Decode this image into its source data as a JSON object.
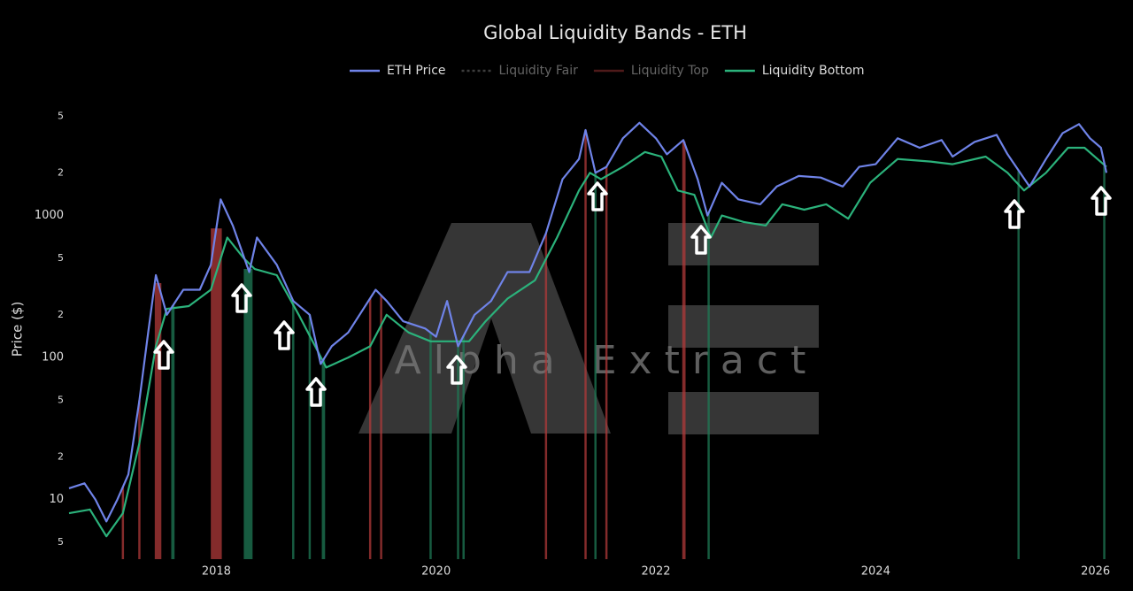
{
  "chart_data": {
    "type": "line",
    "title": "Global Liquidity Bands - ETH",
    "y_label": "Price ($)",
    "watermark": "Alpha Extract",
    "log_y": true,
    "grid": false,
    "legend": "top",
    "xlim": [
      2016.66,
      2026.14
    ],
    "xticks": [
      2018,
      2020,
      2022,
      2024,
      2026
    ],
    "ylim": [
      3.8,
      6800
    ],
    "yticks": [
      {
        "value": 5000,
        "label": "5"
      },
      {
        "value": 2000,
        "label": "2"
      },
      1000,
      {
        "value": 500,
        "label": "5"
      },
      {
        "value": 200,
        "label": "2"
      },
      100,
      {
        "value": 50,
        "label": "5"
      },
      {
        "value": 20,
        "label": "2"
      },
      10,
      {
        "value": 5,
        "label": "5"
      }
    ],
    "series": [
      {
        "name": "ETH Price",
        "color": "#6f83e8",
        "visible": true,
        "x": [
          2016.66,
          2016.8,
          2016.9,
          2017.0,
          2017.1,
          2017.2,
          2017.3,
          2017.38,
          2017.45,
          2017.55,
          2017.7,
          2017.85,
          2017.95,
          2018.04,
          2018.15,
          2018.3,
          2018.37,
          2018.55,
          2018.7,
          2018.85,
          2018.95,
          2019.05,
          2019.2,
          2019.45,
          2019.55,
          2019.7,
          2019.9,
          2020.0,
          2020.1,
          2020.2,
          2020.35,
          2020.5,
          2020.65,
          2020.85,
          2021.0,
          2021.15,
          2021.3,
          2021.36,
          2021.45,
          2021.55,
          2021.7,
          2021.85,
          2022.0,
          2022.1,
          2022.25,
          2022.38,
          2022.47,
          2022.6,
          2022.75,
          2022.95,
          2023.1,
          2023.3,
          2023.5,
          2023.7,
          2023.85,
          2024.0,
          2024.2,
          2024.4,
          2024.6,
          2024.7,
          2024.9,
          2025.1,
          2025.2,
          2025.4,
          2025.55,
          2025.7,
          2025.85,
          2025.95,
          2026.05,
          2026.1
        ],
        "values": [
          12,
          13,
          10,
          7,
          10,
          15,
          50,
          150,
          380,
          200,
          300,
          300,
          450,
          1300,
          850,
          400,
          700,
          450,
          250,
          200,
          90,
          120,
          150,
          300,
          250,
          180,
          160,
          140,
          250,
          120,
          200,
          250,
          400,
          400,
          750,
          1800,
          2500,
          4000,
          2000,
          2200,
          3500,
          4500,
          3500,
          2700,
          3400,
          1800,
          1000,
          1700,
          1300,
          1200,
          1600,
          1900,
          1850,
          1600,
          2200,
          2300,
          3500,
          3000,
          3400,
          2600,
          3300,
          3700,
          2700,
          1600,
          2500,
          3800,
          4400,
          3500,
          3000,
          2000
        ]
      },
      {
        "name": "Liquidity Fair",
        "color": "#888888",
        "visible": false
      },
      {
        "name": "Liquidity Top",
        "color": "#b03a3a",
        "visible": false
      },
      {
        "name": "Liquidity Bottom",
        "color": "#2bb27b",
        "visible": true,
        "x": [
          2016.66,
          2016.85,
          2017.0,
          2017.15,
          2017.3,
          2017.45,
          2017.55,
          2017.75,
          2017.95,
          2018.1,
          2018.25,
          2018.35,
          2018.55,
          2018.75,
          2018.9,
          2019.0,
          2019.2,
          2019.4,
          2019.55,
          2019.75,
          2019.95,
          2020.15,
          2020.3,
          2020.45,
          2020.65,
          2020.9,
          2021.1,
          2021.3,
          2021.4,
          2021.5,
          2021.7,
          2021.9,
          2022.05,
          2022.2,
          2022.35,
          2022.5,
          2022.6,
          2022.8,
          2023.0,
          2023.15,
          2023.35,
          2023.55,
          2023.75,
          2023.95,
          2024.2,
          2024.5,
          2024.7,
          2025.0,
          2025.2,
          2025.35,
          2025.55,
          2025.75,
          2025.9,
          2026.1
        ],
        "values": [
          8,
          8.5,
          5.5,
          8,
          25,
          120,
          220,
          230,
          300,
          700,
          500,
          420,
          380,
          200,
          120,
          85,
          100,
          120,
          200,
          150,
          130,
          130,
          130,
          180,
          260,
          350,
          700,
          1500,
          2000,
          1800,
          2200,
          2800,
          2600,
          1500,
          1400,
          700,
          1000,
          900,
          850,
          1200,
          1100,
          1200,
          950,
          1700,
          2500,
          2400,
          2300,
          2600,
          2000,
          1500,
          2000,
          3000,
          3000,
          2200
        ]
      }
    ],
    "top_signals": [
      [
        2017.14,
        2017.16
      ],
      [
        2017.29,
        2017.31
      ],
      [
        2017.44,
        2017.5
      ],
      [
        2017.95,
        2018.05
      ],
      [
        2019.39,
        2019.41
      ],
      [
        2019.49,
        2019.51
      ],
      [
        2020.99,
        2021.01
      ],
      [
        2021.35,
        2021.37
      ],
      [
        2021.54,
        2021.56
      ],
      [
        2022.24,
        2022.27
      ]
    ],
    "bottom_signals": [
      [
        2017.59,
        2017.62
      ],
      [
        2018.25,
        2018.33
      ],
      [
        2018.69,
        2018.71
      ],
      [
        2018.84,
        2018.86
      ],
      [
        2018.96,
        2018.99
      ],
      [
        2019.94,
        2019.96
      ],
      [
        2020.19,
        2020.21
      ],
      [
        2020.24,
        2020.26
      ],
      [
        2021.44,
        2021.46
      ],
      [
        2022.47,
        2022.49
      ],
      [
        2025.29,
        2025.31
      ],
      [
        2026.07,
        2026.09
      ]
    ]
  }
}
